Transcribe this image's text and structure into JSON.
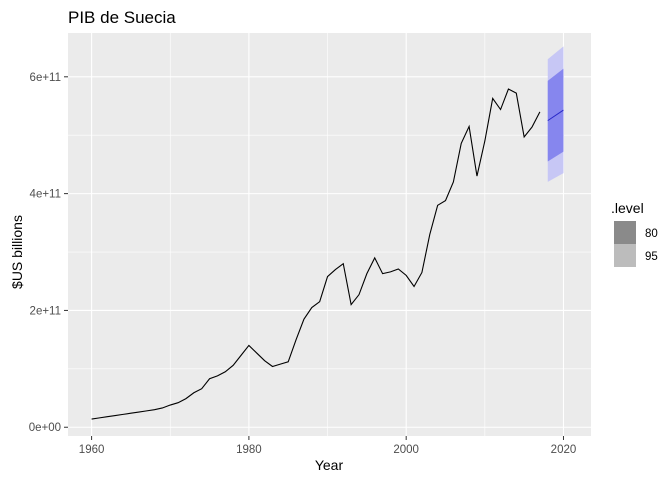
{
  "chart_data": {
    "type": "line",
    "title": "PIB de Suecia",
    "xlabel": "Year",
    "ylabel": "$US billions",
    "xlim": [
      1957,
      2023.5
    ],
    "ylim": [
      -15000000000.0,
      675000000000.0
    ],
    "x_ticks": [
      1960,
      1980,
      2000,
      2020
    ],
    "x_tick_labels": [
      "1960",
      "1980",
      "2000",
      "2020"
    ],
    "y_ticks": [
      0,
      200000000000.0,
      400000000000.0,
      600000000000.0
    ],
    "y_tick_labels": [
      "0e+00",
      "2e+11",
      "4e+11",
      "6e+11"
    ],
    "grid": true,
    "legend_position": "right",
    "series": [
      {
        "x": [
          1960,
          1961,
          1962,
          1963,
          1964,
          1965,
          1966,
          1967,
          1968,
          1969,
          1970,
          1971,
          1972,
          1973,
          1974,
          1975,
          1976,
          1977,
          1978,
          1979,
          1980,
          1981,
          1982,
          1983,
          1984,
          1985,
          1986,
          1987,
          1988,
          1989,
          1990,
          1991,
          1992,
          1993,
          1994,
          1995,
          1996,
          1997,
          1998,
          1999,
          2000,
          2001,
          2002,
          2003,
          2004,
          2005,
          2006,
          2007,
          2008,
          2009,
          2010,
          2011,
          2012,
          2013,
          2014,
          2015,
          2016,
          2017
        ],
        "values": [
          14000000000.0,
          16000000000.0,
          18000000000.0,
          20000000000.0,
          22000000000.0,
          24000000000.0,
          26000000000.0,
          28000000000.0,
          30000000000.0,
          33000000000.0,
          38000000000.0,
          42000000000.0,
          49000000000.0,
          59000000000.0,
          66000000000.0,
          83000000000.0,
          88000000000.0,
          95000000000.0,
          106000000000.0,
          123000000000.0,
          140000000000.0,
          127000000000.0,
          114000000000.0,
          104000000000.0,
          108000000000.0,
          112000000000.0,
          150000000000.0,
          185000000000.0,
          205000000000.0,
          215000000000.0,
          258000000000.0,
          270000000000.0,
          280000000000.0,
          210000000000.0,
          227000000000.0,
          263000000000.0,
          290000000000.0,
          263000000000.0,
          266000000000.0,
          271000000000.0,
          260000000000.0,
          241000000000.0,
          265000000000.0,
          330000000000.0,
          380000000000.0,
          388000000000.0,
          420000000000.0,
          486000000000.0,
          515000000000.0,
          430000000000.0,
          490000000000.0,
          563000000000.0,
          544000000000.0,
          579000000000.0,
          572000000000.0,
          497000000000.0,
          514000000000.0,
          540000000000.0
        ]
      }
    ],
    "forecast": {
      "x": [
        2018,
        2020
      ],
      "mean": [
        525000000000.0,
        543000000000.0
      ],
      "lo80": [
        455000000000.0,
        472000000000.0
      ],
      "hi80": [
        593000000000.0,
        614000000000.0
      ],
      "lo95": [
        420000000000.0,
        435000000000.0
      ],
      "hi95": [
        630000000000.0,
        652000000000.0
      ]
    },
    "legend": {
      "title": ".level",
      "entries": [
        {
          "label": "80",
          "color": "#8a8a8a"
        },
        {
          "label": "95",
          "color": "#bcbcbc"
        }
      ]
    },
    "colors": {
      "panel": "#ebebeb",
      "grid_major": "#ffffff",
      "line": "#000000",
      "band95": "#c7c7f5",
      "band80": "#8686ee",
      "forecast_line": "#2828c8"
    }
  }
}
